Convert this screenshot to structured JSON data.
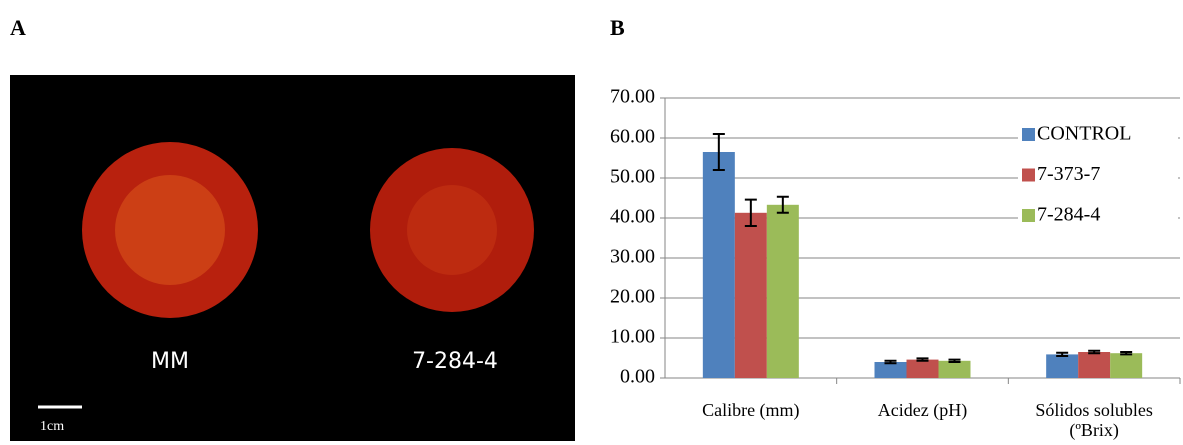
{
  "panel_a": {
    "label": "A",
    "labels": [
      "MM",
      "7-284-4"
    ],
    "scale_bar": "1cm"
  },
  "panel_b": {
    "label": "B"
  },
  "chart_data": {
    "type": "bar",
    "categories": [
      "Calibre (mm)",
      "Acidez (pH)",
      "Sólidos solubles (ºBrix)"
    ],
    "series": [
      {
        "name": "CONTROL",
        "color": "#4f81bd",
        "values": [
          56.5,
          4.0,
          5.9
        ],
        "errors": [
          4.5,
          0.3,
          0.4
        ]
      },
      {
        "name": "7-373-7",
        "color": "#c0504d",
        "values": [
          41.3,
          4.6,
          6.5
        ],
        "errors": [
          3.3,
          0.3,
          0.3
        ]
      },
      {
        "name": "7-284-4",
        "color": "#9bbb59",
        "values": [
          43.3,
          4.3,
          6.2
        ],
        "errors": [
          2.0,
          0.3,
          0.3
        ]
      }
    ],
    "ylim": [
      0,
      70
    ],
    "yticks": [
      {
        "value": 0,
        "label": "0.00"
      },
      {
        "value": 10,
        "label": "10.00"
      },
      {
        "value": 20,
        "label": "20.00"
      },
      {
        "value": 30,
        "label": "30.00"
      },
      {
        "value": 40,
        "label": "40.00"
      },
      {
        "value": 50,
        "label": "50.00"
      },
      {
        "value": 60,
        "label": "60.00"
      },
      {
        "value": 70,
        "label": "70.00"
      }
    ],
    "grid": true,
    "legend": "top-right"
  }
}
